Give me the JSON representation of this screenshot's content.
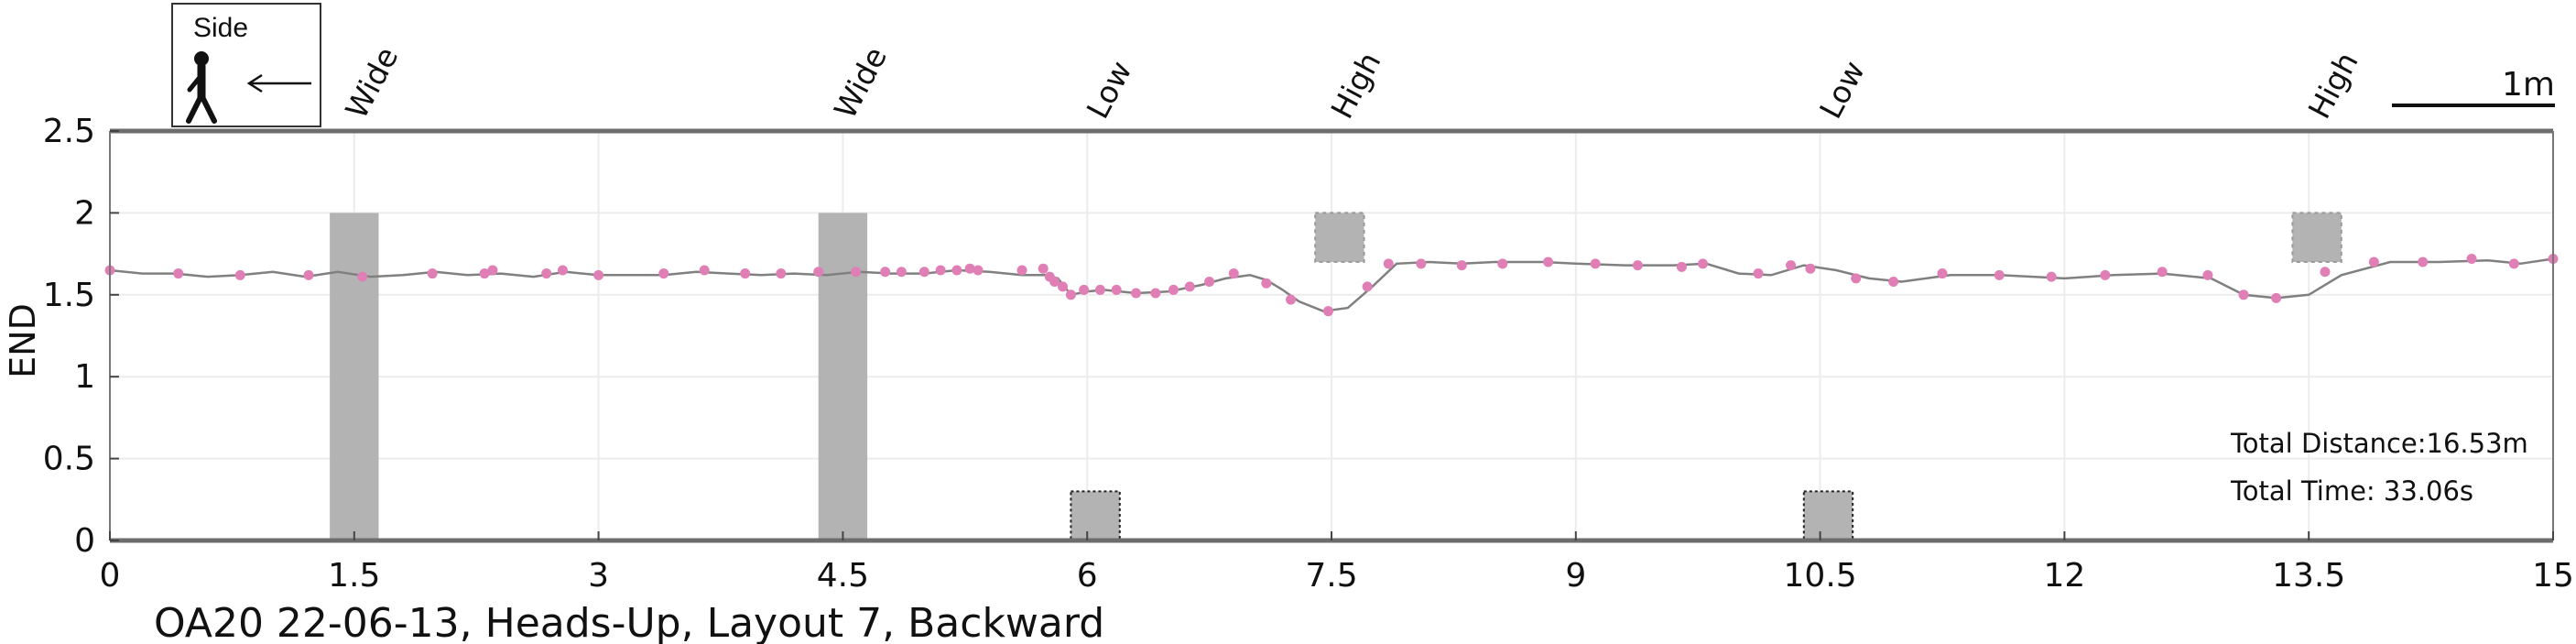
{
  "chart_data": {
    "type": "line",
    "title": "OA20 22-06-13, Heads-Up, Layout 7, Backward",
    "xlabel": "",
    "ylabel": "END",
    "xlim": [
      0,
      15
    ],
    "ylim": [
      0,
      2.5
    ],
    "x_ticks": [
      "0",
      "1.5",
      "3",
      "4.5",
      "6",
      "7.5",
      "9",
      "10.5",
      "12",
      "13.5",
      "15"
    ],
    "y_ticks": [
      "0",
      "0.5",
      "1",
      "1.5",
      "2",
      "2.5"
    ],
    "grid": true,
    "legend": {
      "label": "Side",
      "icon": "walking-person-icon",
      "direction": "left-arrow-icon",
      "placement": "top-left"
    },
    "scale_bar": {
      "label": "1m",
      "length": 1
    },
    "annotations": [
      "Total Distance:16.53m",
      "Total Time: 33.06s"
    ],
    "colors": {
      "line": "#808080",
      "points": "#e07fb5",
      "obstacle": "#b3b3b3",
      "axis": "#6d6d6d"
    },
    "obstacles": [
      {
        "label": "Wide",
        "type": "wide",
        "x": [
          1.35,
          1.65
        ],
        "y": [
          0,
          2.0
        ]
      },
      {
        "label": "Wide",
        "type": "wide",
        "x": [
          4.35,
          4.65
        ],
        "y": [
          0,
          2.0
        ]
      },
      {
        "label": "Low",
        "type": "low",
        "x": [
          5.9,
          6.2
        ],
        "y": [
          0,
          0.3
        ]
      },
      {
        "label": "High",
        "type": "high",
        "x": [
          7.4,
          7.7
        ],
        "y": [
          1.7,
          2.0
        ]
      },
      {
        "label": "Low",
        "type": "low",
        "x": [
          10.4,
          10.7
        ],
        "y": [
          0,
          0.3
        ]
      },
      {
        "label": "High",
        "type": "high",
        "x": [
          13.4,
          13.7
        ],
        "y": [
          1.7,
          2.0
        ]
      }
    ],
    "series": [
      {
        "line": [
          [
            0.0,
            1.65
          ],
          [
            0.2,
            1.63
          ],
          [
            0.4,
            1.63
          ],
          [
            0.6,
            1.61
          ],
          [
            0.8,
            1.62
          ],
          [
            1.0,
            1.64
          ],
          [
            1.2,
            1.61
          ],
          [
            1.4,
            1.64
          ],
          [
            1.6,
            1.61
          ],
          [
            1.8,
            1.62
          ],
          [
            2.0,
            1.64
          ],
          [
            2.2,
            1.62
          ],
          [
            2.4,
            1.63
          ],
          [
            2.6,
            1.61
          ],
          [
            2.8,
            1.64
          ],
          [
            3.0,
            1.62
          ],
          [
            3.2,
            1.62
          ],
          [
            3.4,
            1.62
          ],
          [
            3.6,
            1.64
          ],
          [
            3.8,
            1.63
          ],
          [
            4.0,
            1.62
          ],
          [
            4.2,
            1.63
          ],
          [
            4.4,
            1.62
          ],
          [
            4.6,
            1.64
          ],
          [
            4.8,
            1.63
          ],
          [
            5.0,
            1.63
          ],
          [
            5.2,
            1.65
          ],
          [
            5.4,
            1.64
          ],
          [
            5.6,
            1.62
          ],
          [
            5.75,
            1.62
          ],
          [
            5.82,
            1.6
          ],
          [
            5.9,
            1.5
          ],
          [
            6.0,
            1.52
          ],
          [
            6.1,
            1.53
          ],
          [
            6.3,
            1.51
          ],
          [
            6.5,
            1.52
          ],
          [
            6.7,
            1.56
          ],
          [
            6.85,
            1.6
          ],
          [
            7.0,
            1.62
          ],
          [
            7.1,
            1.59
          ],
          [
            7.2,
            1.53
          ],
          [
            7.3,
            1.46
          ],
          [
            7.45,
            1.4
          ],
          [
            7.6,
            1.42
          ],
          [
            7.75,
            1.55
          ],
          [
            7.9,
            1.69
          ],
          [
            8.1,
            1.7
          ],
          [
            8.3,
            1.69
          ],
          [
            8.5,
            1.7
          ],
          [
            8.8,
            1.7
          ],
          [
            9.0,
            1.69
          ],
          [
            9.3,
            1.68
          ],
          [
            9.6,
            1.68
          ],
          [
            9.8,
            1.69
          ],
          [
            10.0,
            1.63
          ],
          [
            10.2,
            1.62
          ],
          [
            10.4,
            1.68
          ],
          [
            10.6,
            1.65
          ],
          [
            10.8,
            1.6
          ],
          [
            11.0,
            1.58
          ],
          [
            11.3,
            1.62
          ],
          [
            11.6,
            1.62
          ],
          [
            12.0,
            1.6
          ],
          [
            12.3,
            1.62
          ],
          [
            12.6,
            1.63
          ],
          [
            12.9,
            1.6
          ],
          [
            13.1,
            1.5
          ],
          [
            13.3,
            1.48
          ],
          [
            13.5,
            1.5
          ],
          [
            13.7,
            1.62
          ],
          [
            14.0,
            1.7
          ],
          [
            14.3,
            1.7
          ],
          [
            14.6,
            1.71
          ],
          [
            14.8,
            1.69
          ],
          [
            15.0,
            1.72
          ]
        ],
        "points": [
          [
            0.0,
            1.65
          ],
          [
            0.42,
            1.63
          ],
          [
            0.8,
            1.62
          ],
          [
            1.22,
            1.62
          ],
          [
            1.55,
            1.61
          ],
          [
            1.98,
            1.63
          ],
          [
            2.3,
            1.63
          ],
          [
            2.35,
            1.65
          ],
          [
            2.68,
            1.63
          ],
          [
            2.78,
            1.65
          ],
          [
            3.0,
            1.62
          ],
          [
            3.4,
            1.63
          ],
          [
            3.65,
            1.65
          ],
          [
            3.9,
            1.63
          ],
          [
            4.12,
            1.63
          ],
          [
            4.35,
            1.64
          ],
          [
            4.58,
            1.64
          ],
          [
            4.76,
            1.64
          ],
          [
            4.86,
            1.64
          ],
          [
            5.0,
            1.64
          ],
          [
            5.1,
            1.65
          ],
          [
            5.2,
            1.65
          ],
          [
            5.28,
            1.66
          ],
          [
            5.33,
            1.65
          ],
          [
            5.6,
            1.65
          ],
          [
            5.73,
            1.66
          ],
          [
            5.77,
            1.61
          ],
          [
            5.8,
            1.58
          ],
          [
            5.85,
            1.55
          ],
          [
            5.9,
            1.5
          ],
          [
            5.98,
            1.53
          ],
          [
            6.08,
            1.53
          ],
          [
            6.18,
            1.53
          ],
          [
            6.3,
            1.51
          ],
          [
            6.42,
            1.51
          ],
          [
            6.53,
            1.53
          ],
          [
            6.63,
            1.55
          ],
          [
            6.75,
            1.58
          ],
          [
            6.9,
            1.63
          ],
          [
            7.1,
            1.57
          ],
          [
            7.25,
            1.47
          ],
          [
            7.48,
            1.4
          ],
          [
            7.72,
            1.55
          ],
          [
            7.85,
            1.69
          ],
          [
            8.05,
            1.69
          ],
          [
            8.3,
            1.68
          ],
          [
            8.55,
            1.69
          ],
          [
            8.83,
            1.7
          ],
          [
            9.12,
            1.69
          ],
          [
            9.38,
            1.68
          ],
          [
            9.65,
            1.67
          ],
          [
            9.78,
            1.69
          ],
          [
            10.12,
            1.63
          ],
          [
            10.32,
            1.68
          ],
          [
            10.44,
            1.66
          ],
          [
            10.72,
            1.6
          ],
          [
            10.95,
            1.58
          ],
          [
            11.25,
            1.63
          ],
          [
            11.6,
            1.62
          ],
          [
            11.92,
            1.61
          ],
          [
            12.25,
            1.62
          ],
          [
            12.6,
            1.64
          ],
          [
            12.88,
            1.62
          ],
          [
            13.1,
            1.5
          ],
          [
            13.3,
            1.48
          ],
          [
            13.6,
            1.64
          ],
          [
            13.9,
            1.7
          ],
          [
            14.2,
            1.7
          ],
          [
            14.5,
            1.72
          ],
          [
            14.76,
            1.69
          ],
          [
            15.0,
            1.72
          ]
        ]
      }
    ]
  }
}
